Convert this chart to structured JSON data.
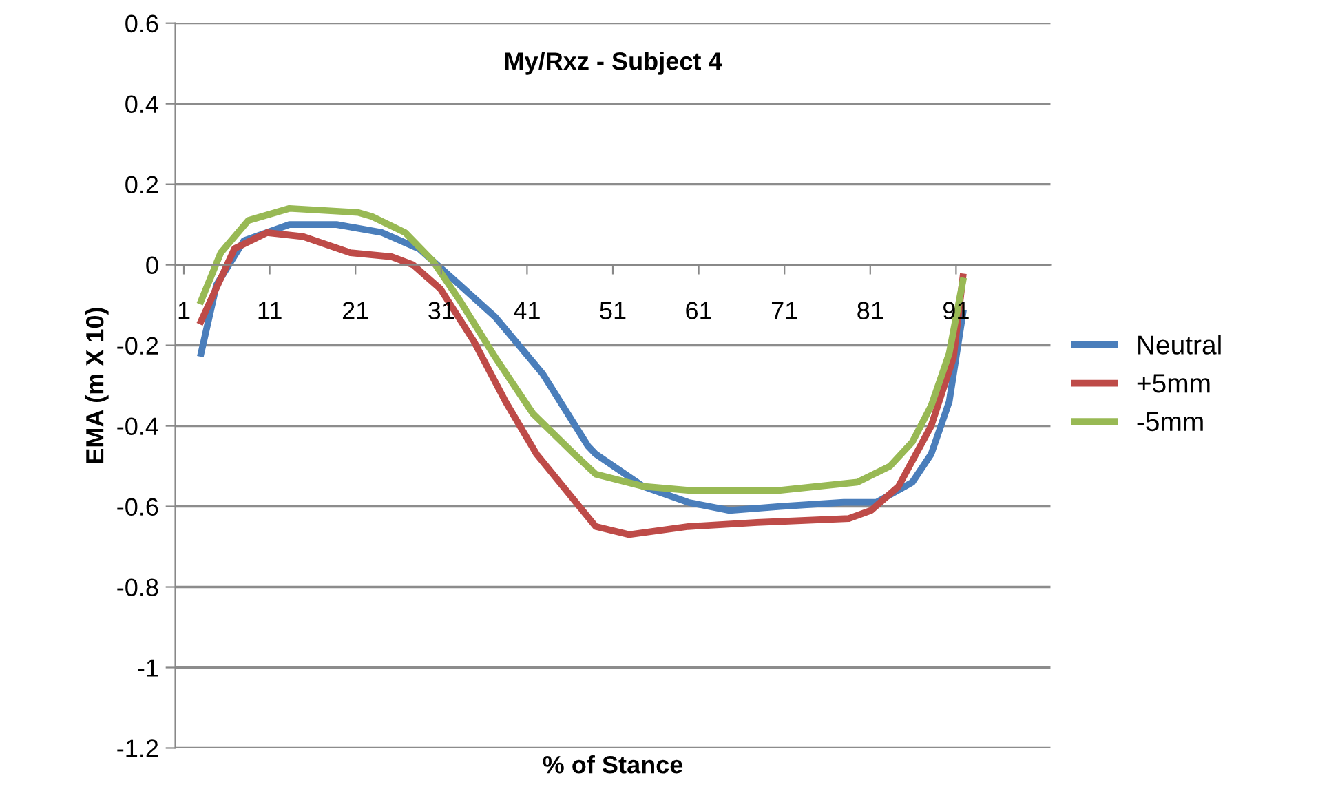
{
  "chart_data": {
    "type": "line",
    "title": "My/Rxz - Subject 4",
    "xlabel": "% of Stance",
    "ylabel": "EMA (m X 10)",
    "xlim": [
      0,
      102
    ],
    "xticks": [
      1,
      11,
      21,
      31,
      41,
      51,
      61,
      71,
      81,
      91
    ],
    "ylim": [
      -1.2,
      0.6
    ],
    "yticks": [
      -1.2,
      -1,
      -0.8,
      -0.6,
      -0.4,
      -0.2,
      0,
      0.2,
      0.4,
      0.6
    ],
    "grid": "y",
    "legend": "right",
    "marker": "none",
    "line_style": "solid",
    "series": [
      {
        "name": "Neutral",
        "color": "#4a7ebb",
        "x": [
          3,
          4.8,
          8,
          13.3,
          18.8,
          24.1,
          28.4,
          32.1,
          37.3,
          42.8,
          48.1,
          49.0,
          54.5,
          59.8,
          64.6,
          70.5,
          77.9,
          81.7,
          85.9,
          88.1,
          90.2,
          91.8
        ],
        "values": [
          -0.22,
          -0.05,
          0.06,
          0.1,
          0.1,
          0.08,
          0.04,
          -0.03,
          -0.13,
          -0.27,
          -0.45,
          -0.47,
          -0.55,
          -0.59,
          -0.61,
          -0.6,
          -0.59,
          -0.59,
          -0.54,
          -0.47,
          -0.34,
          -0.12
        ]
      },
      {
        "name": "+5mm",
        "color": "#be4b48",
        "x": [
          3,
          6.9,
          10.7,
          14.9,
          20.4,
          25.2,
          27.7,
          30.9,
          34.8,
          38.5,
          42.1,
          49.0,
          52.9,
          59.8,
          67.8,
          78.5,
          81.1,
          84.3,
          88.1,
          90.7,
          91.8
        ],
        "values": [
          -0.14,
          0.04,
          0.08,
          0.07,
          0.03,
          0.02,
          0.0,
          -0.06,
          -0.19,
          -0.34,
          -0.47,
          -0.65,
          -0.67,
          -0.65,
          -0.64,
          -0.63,
          -0.61,
          -0.55,
          -0.4,
          -0.23,
          -0.03
        ]
      },
      {
        "name": "-5mm",
        "color": "#98b954",
        "x": [
          3,
          5.3,
          8.5,
          13.3,
          21.3,
          22.9,
          26.8,
          30.0,
          33.2,
          37.3,
          41.7,
          46.5,
          49.0,
          54.5,
          59.8,
          70.5,
          79.5,
          83.3,
          85.9,
          88.1,
          90.2,
          91.8
        ],
        "values": [
          -0.09,
          0.03,
          0.11,
          0.14,
          0.13,
          0.12,
          0.08,
          0.01,
          -0.09,
          -0.23,
          -0.37,
          -0.47,
          -0.52,
          -0.55,
          -0.56,
          -0.56,
          -0.54,
          -0.5,
          -0.44,
          -0.35,
          -0.22,
          -0.04
        ]
      }
    ]
  }
}
